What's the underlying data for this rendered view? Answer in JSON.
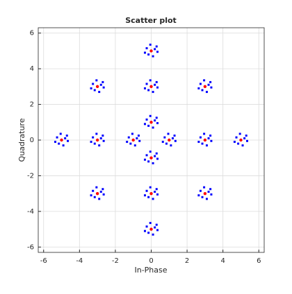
{
  "chart_data": {
    "type": "scatter",
    "title": "Scatter plot",
    "x_label": "In-Phase",
    "y_label": "Quadrature",
    "xlim": [
      -6.3,
      6.3
    ],
    "ylim": [
      -6.3,
      6.3
    ],
    "xticks": [
      -6,
      -4,
      -2,
      0,
      2,
      4,
      6
    ],
    "yticks": [
      -6,
      -4,
      -2,
      0,
      2,
      4,
      6
    ],
    "grid": true,
    "series": [
      {
        "color": "#0000ff",
        "marker": "square",
        "x": [
          0.2,
          -0.25,
          0.1,
          -0.15,
          0.35,
          -0.05,
          0.3,
          -0.35,
          -2.8,
          -3.25,
          -2.9,
          -3.15,
          -2.65,
          -3.05,
          -2.7,
          -3.35,
          0.2,
          -0.25,
          0.1,
          -0.15,
          0.35,
          -0.05,
          0.3,
          -0.35,
          3.2,
          2.75,
          3.1,
          2.85,
          3.35,
          2.95,
          3.3,
          2.65,
          0.2,
          -0.25,
          0.1,
          -0.15,
          0.35,
          -0.05,
          0.3,
          -0.35,
          -4.8,
          -5.25,
          -4.9,
          -5.15,
          -4.65,
          -5.05,
          -4.7,
          -5.35,
          -2.8,
          -3.25,
          -2.9,
          -3.15,
          -2.65,
          -3.05,
          -2.7,
          -3.35,
          -0.8,
          -1.25,
          -0.9,
          -1.15,
          -0.65,
          -1.05,
          -0.7,
          -1.35,
          1.2,
          0.75,
          1.1,
          0.85,
          1.35,
          0.95,
          1.3,
          0.65,
          3.2,
          2.75,
          3.1,
          2.85,
          3.35,
          2.95,
          3.3,
          2.65,
          5.2,
          4.75,
          5.1,
          4.85,
          5.35,
          4.95,
          5.3,
          4.65,
          0.2,
          -0.25,
          0.1,
          -0.15,
          0.35,
          -0.05,
          0.3,
          -0.35,
          -2.8,
          -3.25,
          -2.9,
          -3.15,
          -2.65,
          -3.05,
          -2.7,
          -3.35,
          0.2,
          -0.25,
          0.1,
          -0.15,
          0.35,
          -0.05,
          0.3,
          -0.35,
          3.2,
          2.75,
          3.1,
          2.85,
          3.35,
          2.95,
          3.3,
          2.65,
          0.2,
          -0.25,
          0.1,
          -0.15,
          0.35,
          -0.05,
          0.3,
          -0.35
        ],
        "y": [
          5.1,
          5.15,
          4.7,
          4.8,
          4.95,
          5.35,
          5.25,
          4.9,
          3.1,
          3.15,
          2.7,
          2.8,
          2.95,
          3.35,
          3.25,
          2.9,
          3.1,
          3.15,
          2.7,
          2.8,
          2.95,
          3.35,
          3.25,
          2.9,
          3.1,
          3.15,
          2.7,
          2.8,
          2.95,
          3.35,
          3.25,
          2.9,
          1.1,
          1.15,
          0.7,
          0.8,
          0.95,
          1.35,
          1.25,
          0.9,
          0.1,
          0.15,
          -0.3,
          -0.2,
          -0.05,
          0.35,
          0.25,
          -0.1,
          0.1,
          0.15,
          -0.3,
          -0.2,
          -0.05,
          0.35,
          0.25,
          -0.1,
          0.1,
          0.15,
          -0.3,
          -0.2,
          -0.05,
          0.35,
          0.25,
          -0.1,
          0.1,
          0.15,
          -0.3,
          -0.2,
          -0.05,
          0.35,
          0.25,
          -0.1,
          0.1,
          0.15,
          -0.3,
          -0.2,
          -0.05,
          0.35,
          0.25,
          -0.1,
          0.1,
          0.15,
          -0.3,
          -0.2,
          -0.05,
          0.35,
          0.25,
          -0.1,
          -0.9,
          -0.85,
          -1.3,
          -1.2,
          -1.05,
          -0.65,
          -0.75,
          -1.1,
          -2.9,
          -2.85,
          -3.3,
          -3.2,
          -3.05,
          -2.65,
          -2.75,
          -3.1,
          -2.9,
          -2.85,
          -3.3,
          -3.2,
          -3.05,
          -2.65,
          -2.75,
          -3.1,
          -2.9,
          -2.85,
          -3.3,
          -3.2,
          -3.05,
          -2.65,
          -2.75,
          -3.1,
          -4.9,
          -4.85,
          -5.3,
          -5.2,
          -5.05,
          -4.65,
          -4.75,
          -5.1
        ]
      },
      {
        "color": "#ff0000",
        "marker": "dot",
        "x": [
          0,
          -3,
          0,
          3,
          0,
          -5,
          -3,
          -1,
          1,
          3,
          5,
          0,
          -3,
          0,
          3,
          0
        ],
        "y": [
          5,
          3,
          3,
          3,
          1,
          0,
          0,
          0,
          0,
          0,
          0,
          -1,
          -3,
          -3,
          -3,
          -5
        ]
      }
    ]
  }
}
